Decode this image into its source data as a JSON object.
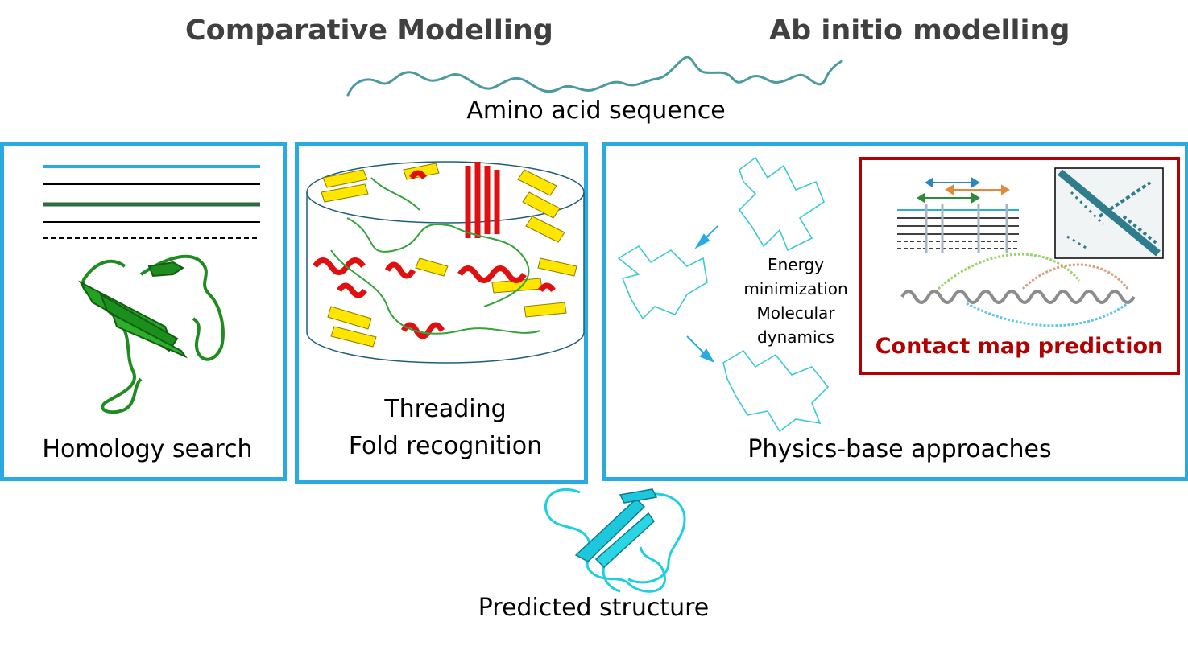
{
  "headings": {
    "comparative": "Comparative Modelling",
    "ab_initio": "Ab initio modelling"
  },
  "sequence_label": "Amino acid sequence",
  "panels": {
    "homology": {
      "label": "Homology search"
    },
    "threading": {
      "label_line1": "Threading",
      "label_line2": "Fold recognition"
    },
    "physics": {
      "label": "Physics-base approaches",
      "methods": [
        "Energy",
        "minimization",
        "Molecular",
        "dynamics"
      ]
    },
    "contact_map": {
      "label": "Contact map prediction"
    }
  },
  "predicted_label": "Predicted structure",
  "colors": {
    "panel_border": "#29abe2",
    "contact_border": "#b30000",
    "heading_text": "#404040",
    "homology_green": "#1e9e1e",
    "predicted_cyan": "#1ecfe0",
    "sequence_teal": "#4a9a9f",
    "matrix_teal": "#2f7d8c"
  }
}
